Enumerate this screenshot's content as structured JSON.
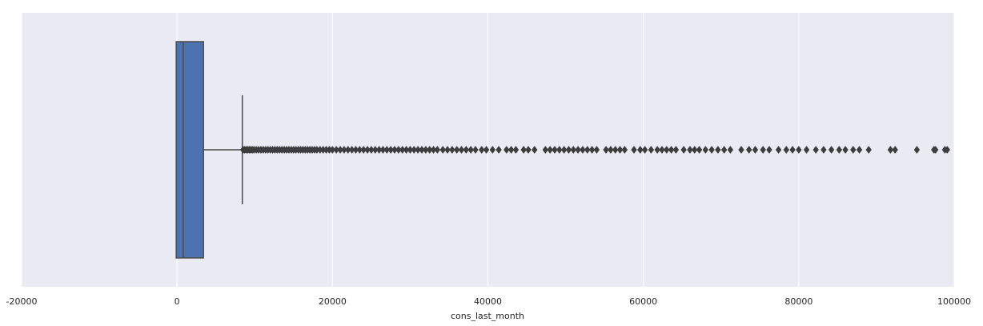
{
  "chart_data": {
    "type": "box",
    "orientation": "horizontal",
    "title": "",
    "xlabel": "cons_last_month",
    "ylabel": "",
    "xlim": [
      -20000,
      100000
    ],
    "xticks": [
      -20000,
      0,
      20000,
      40000,
      60000,
      80000,
      100000
    ],
    "xtick_labels": [
      "-20000",
      "0",
      "20000",
      "40000",
      "60000",
      "80000",
      "100000"
    ],
    "grid": true,
    "background": "#EAEAF2",
    "grid_color": "#FFFFFF",
    "box_color": "#4C72B0",
    "line_color": "#4A4A4A",
    "box": {
      "whisker_low": 0,
      "q1": 0,
      "median": 800,
      "q3": 3400,
      "whisker_high": 8400
    },
    "outliers": [
      8500,
      8700,
      8900,
      9100,
      9300,
      9500,
      9700,
      9900,
      10200,
      10500,
      10800,
      11100,
      11400,
      11700,
      12000,
      12300,
      12600,
      12900,
      13200,
      13500,
      13800,
      14100,
      14400,
      14700,
      15000,
      15300,
      15600,
      15900,
      16200,
      16500,
      16800,
      17100,
      17400,
      17700,
      18000,
      18400,
      18800,
      19200,
      19600,
      20000,
      20500,
      21000,
      21500,
      22000,
      22500,
      23000,
      23500,
      24000,
      24500,
      25000,
      25500,
      26000,
      26500,
      27000,
      27500,
      28000,
      28500,
      29000,
      29500,
      30000,
      30500,
      31000,
      31500,
      32000,
      32500,
      33000,
      33500,
      34200,
      34800,
      35400,
      36000,
      36600,
      37200,
      37800,
      38400,
      39200,
      39800,
      40600,
      41400,
      42400,
      43000,
      43600,
      44600,
      45200,
      46000,
      47400,
      48000,
      48600,
      49200,
      49800,
      50400,
      51000,
      51600,
      52200,
      52800,
      53400,
      54000,
      55200,
      55800,
      56400,
      57000,
      57600,
      58800,
      59600,
      60200,
      61000,
      61800,
      62400,
      63000,
      63600,
      64200,
      65200,
      66000,
      66600,
      67200,
      68000,
      68800,
      69600,
      70400,
      71200,
      72600,
      73600,
      74400,
      75400,
      76200,
      77400,
      78400,
      79200,
      80000,
      81000,
      82200,
      83200,
      84200,
      85200,
      86000,
      87000,
      87800,
      89000,
      91800,
      92400,
      95200,
      97400,
      97600,
      98800,
      99100
    ]
  }
}
